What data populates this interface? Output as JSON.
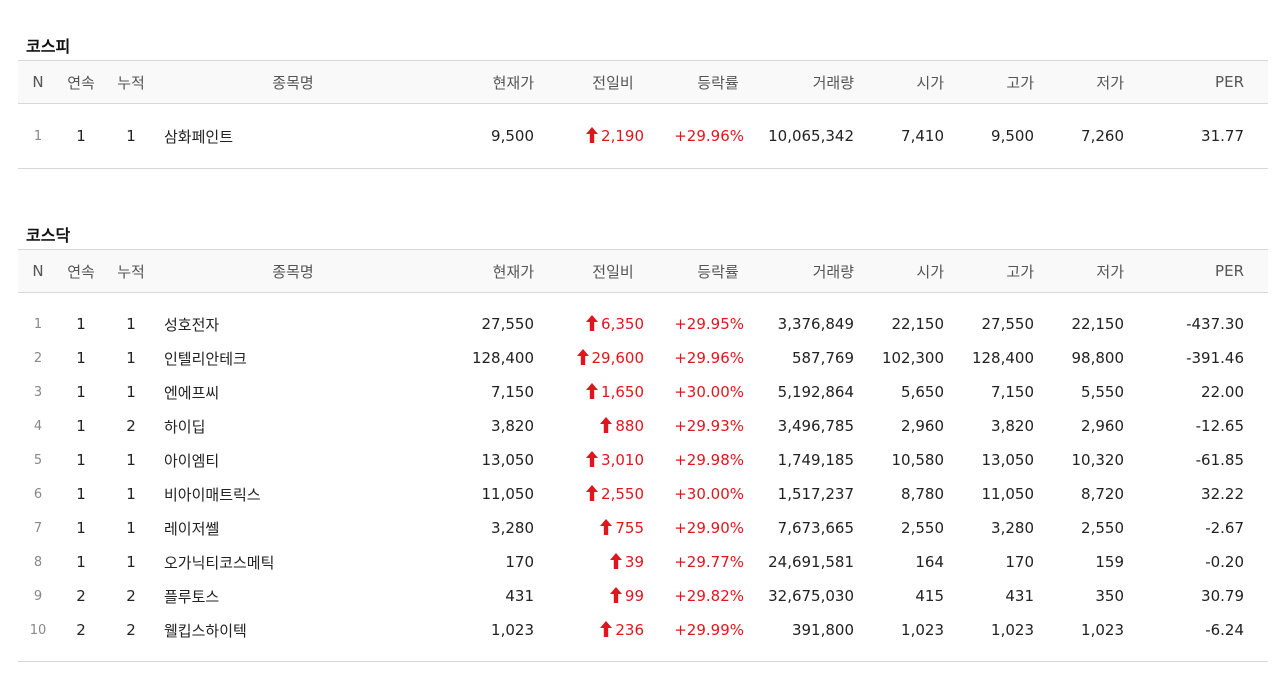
{
  "kospi": {
    "title": "코스피",
    "headers": [
      "N",
      "연속",
      "누적",
      "종목명",
      "현재가",
      "전일비",
      "등락률",
      "거래량",
      "시가",
      "고가",
      "저가",
      "PER"
    ],
    "rows": [
      {
        "n": "1",
        "cont": "1",
        "cum": "1",
        "name": "삼화페인트",
        "price": "9,500",
        "change": "2,190",
        "rate": "+29.96%",
        "volume": "10,065,342",
        "open": "7,410",
        "high": "9,500",
        "low": "7,260",
        "per": "31.77"
      }
    ]
  },
  "kosdaq": {
    "title": "코스닥",
    "headers": [
      "N",
      "연속",
      "누적",
      "종목명",
      "현재가",
      "전일비",
      "등락률",
      "거래량",
      "시가",
      "고가",
      "저가",
      "PER"
    ],
    "rows": [
      {
        "n": "1",
        "cont": "1",
        "cum": "1",
        "name": "성호전자",
        "price": "27,550",
        "change": "6,350",
        "rate": "+29.95%",
        "volume": "3,376,849",
        "open": "22,150",
        "high": "27,550",
        "low": "22,150",
        "per": "-437.30"
      },
      {
        "n": "2",
        "cont": "1",
        "cum": "1",
        "name": "인텔리안테크",
        "price": "128,400",
        "change": "29,600",
        "rate": "+29.96%",
        "volume": "587,769",
        "open": "102,300",
        "high": "128,400",
        "low": "98,800",
        "per": "-391.46"
      },
      {
        "n": "3",
        "cont": "1",
        "cum": "1",
        "name": "엔에프씨",
        "price": "7,150",
        "change": "1,650",
        "rate": "+30.00%",
        "volume": "5,192,864",
        "open": "5,650",
        "high": "7,150",
        "low": "5,550",
        "per": "22.00"
      },
      {
        "n": "4",
        "cont": "1",
        "cum": "2",
        "name": "하이딥",
        "price": "3,820",
        "change": "880",
        "rate": "+29.93%",
        "volume": "3,496,785",
        "open": "2,960",
        "high": "3,820",
        "low": "2,960",
        "per": "-12.65"
      },
      {
        "n": "5",
        "cont": "1",
        "cum": "1",
        "name": "아이엠티",
        "price": "13,050",
        "change": "3,010",
        "rate": "+29.98%",
        "volume": "1,749,185",
        "open": "10,580",
        "high": "13,050",
        "low": "10,320",
        "per": "-61.85"
      },
      {
        "n": "6",
        "cont": "1",
        "cum": "1",
        "name": "비아이매트릭스",
        "price": "11,050",
        "change": "2,550",
        "rate": "+30.00%",
        "volume": "1,517,237",
        "open": "8,780",
        "high": "11,050",
        "low": "8,720",
        "per": "32.22"
      },
      {
        "n": "7",
        "cont": "1",
        "cum": "1",
        "name": "레이저쎌",
        "price": "3,280",
        "change": "755",
        "rate": "+29.90%",
        "volume": "7,673,665",
        "open": "2,550",
        "high": "3,280",
        "low": "2,550",
        "per": "-2.67"
      },
      {
        "n": "8",
        "cont": "1",
        "cum": "1",
        "name": "오가닉티코스메틱",
        "price": "170",
        "change": "39",
        "rate": "+29.77%",
        "volume": "24,691,581",
        "open": "164",
        "high": "170",
        "low": "159",
        "per": "-0.20"
      },
      {
        "n": "9",
        "cont": "2",
        "cum": "2",
        "name": "플루토스",
        "price": "431",
        "change": "99",
        "rate": "+29.82%",
        "volume": "32,675,030",
        "open": "415",
        "high": "431",
        "low": "350",
        "per": "30.79"
      },
      {
        "n": "10",
        "cont": "2",
        "cum": "2",
        "name": "웰킵스하이텍",
        "price": "1,023",
        "change": "236",
        "rate": "+29.99%",
        "volume": "391,800",
        "open": "1,023",
        "high": "1,023",
        "low": "1,023",
        "per": "-6.24"
      }
    ]
  },
  "colors": {
    "up": "#e0161e",
    "header_bg": "#f9f9f9",
    "border": "#d8d8d8"
  },
  "icons": {
    "change_direction": "up-arrow-icon"
  }
}
